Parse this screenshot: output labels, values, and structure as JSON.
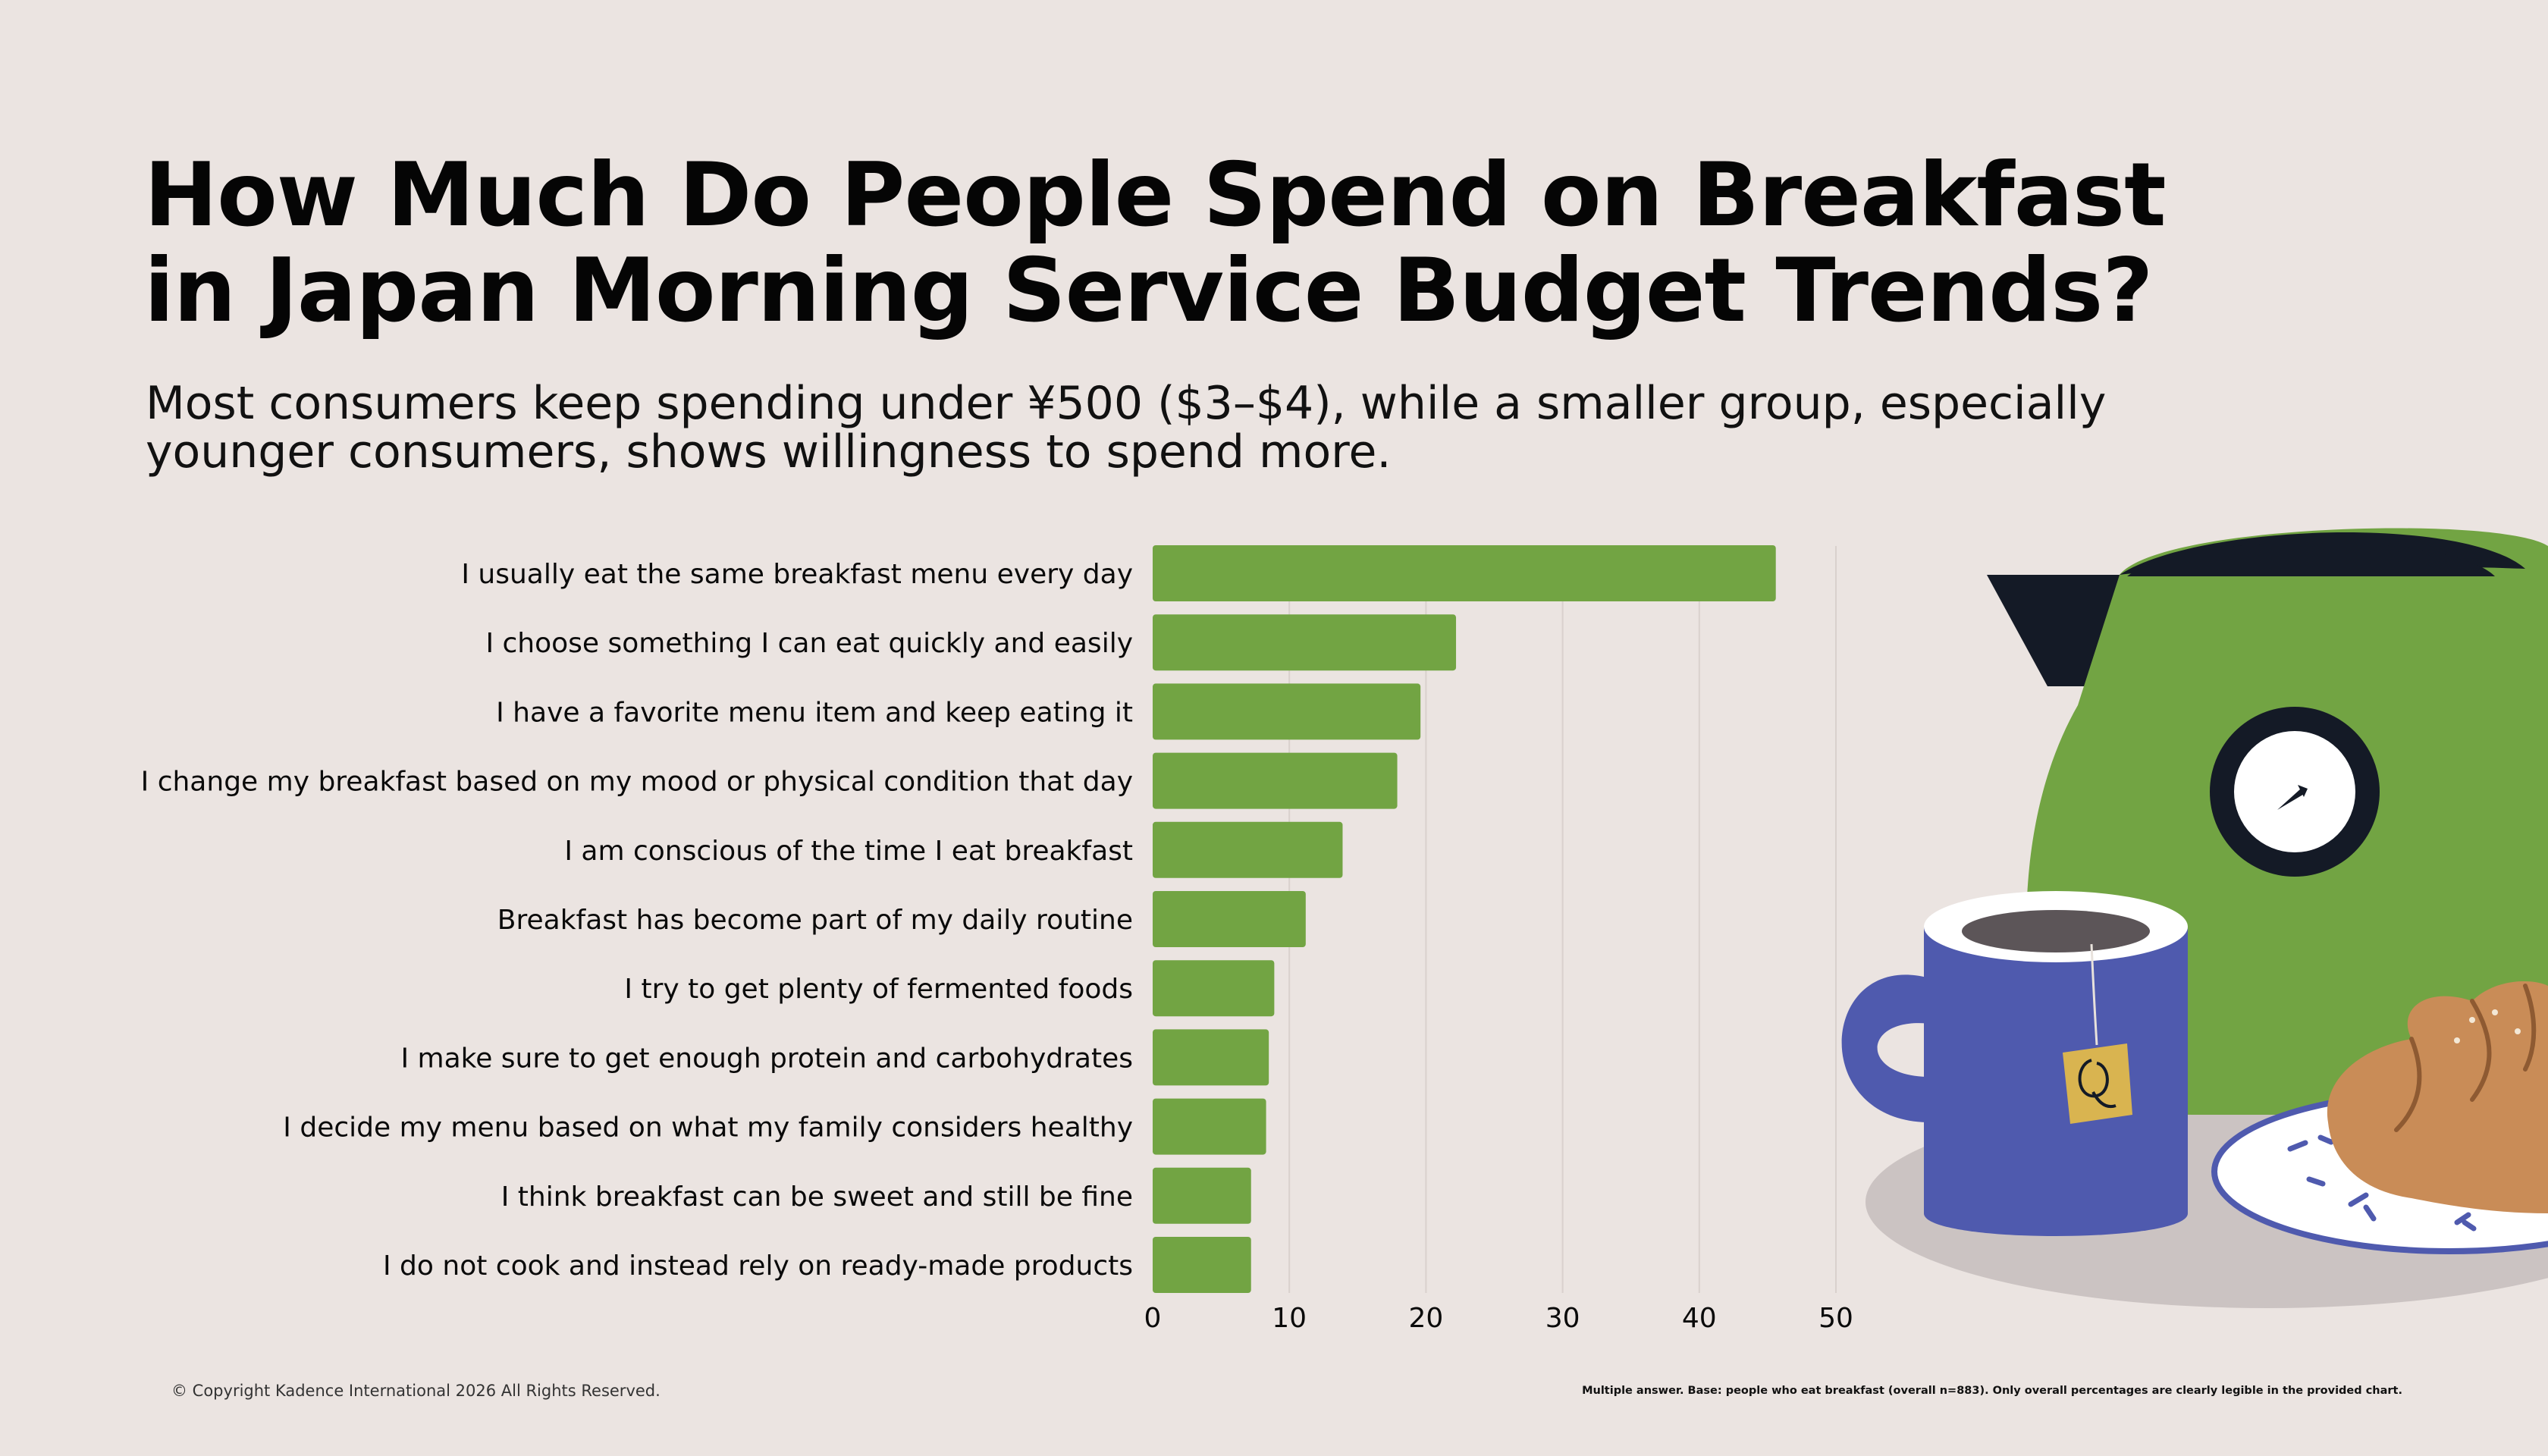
{
  "title": "How Much Do People Spend on Breakfast in Japan Morning Service Budget Trends?",
  "subtitle": "Most consumers keep spending under ¥500 ($3–$4), while a smaller group, especially younger consumers, shows willingness to spend more.",
  "copyright": "© Copyright Kadence International 2026 All Rights Reserved.",
  "footnote": "Multiple answer. Base: people who eat breakfast (overall n=883). Only overall percentages are clearly legible in the provided chart.",
  "colors": {
    "background": "#ebe4e1",
    "bar": "#72a443",
    "gridline": "#d9d1cd",
    "text": "#0a0a0a"
  },
  "chart_data": {
    "type": "bar",
    "orientation": "horizontal",
    "categories": [
      "I usually eat the same breakfast menu every day",
      "I choose something I can eat quickly and easily",
      "I have a favorite menu item and keep eating it",
      "I change my breakfast based on my mood or physical condition that day",
      "I am conscious of the time I eat breakfast",
      "Breakfast has become part of my daily routine",
      "I try to get plenty of fermented foods",
      "I make sure to get enough protein and carbohydrates",
      "I decide my menu based on what my family considers healthy",
      "I think breakfast can be sweet and still be fine",
      "I do not cook and instead rely on ready-made products"
    ],
    "values": [
      45.6,
      22.2,
      19.6,
      17.9,
      13.9,
      11.2,
      8.9,
      8.5,
      8.3,
      7.2,
      7.2
    ],
    "xlim": [
      0,
      50
    ],
    "xticks": [
      0,
      10,
      20,
      30,
      40,
      50
    ],
    "grid": "vertical",
    "legend": "none"
  },
  "illustration": {
    "icons": [
      "kettle-icon",
      "clock-dial-icon",
      "mug-icon",
      "tea-bag-icon",
      "croissant-icon",
      "plate-icon"
    ]
  }
}
